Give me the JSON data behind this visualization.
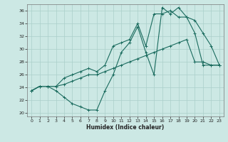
{
  "xlabel": "Humidex (Indice chaleur)",
  "bg_color": "#cce8e4",
  "line_color": "#1a6b5e",
  "grid_color": "#aacfca",
  "xlim": [
    -0.5,
    23.5
  ],
  "ylim": [
    19.5,
    37.0
  ],
  "xticks": [
    0,
    1,
    2,
    3,
    4,
    5,
    6,
    7,
    8,
    9,
    10,
    11,
    12,
    13,
    14,
    15,
    16,
    17,
    18,
    19,
    20,
    21,
    22,
    23
  ],
  "yticks": [
    20,
    22,
    24,
    26,
    28,
    30,
    32,
    34,
    36
  ],
  "line_jagged": {
    "x": [
      0,
      1,
      2,
      3,
      4,
      5,
      6,
      7,
      8,
      9,
      10,
      11,
      12,
      13,
      14,
      15,
      16,
      17,
      18,
      19,
      20,
      21,
      22,
      23
    ],
    "y": [
      23.5,
      24.2,
      24.2,
      23.5,
      22.5,
      21.5,
      21.0,
      20.5,
      20.5,
      23.5,
      26.0,
      29.5,
      31.0,
      33.5,
      29.5,
      26.0,
      36.5,
      35.5,
      36.5,
      35.0,
      32.5,
      27.5,
      27.5,
      27.5
    ]
  },
  "line_linear": {
    "x": [
      0,
      1,
      2,
      3,
      4,
      5,
      6,
      7,
      8,
      9,
      10,
      11,
      12,
      13,
      14,
      15,
      16,
      17,
      18,
      19,
      20,
      21,
      22,
      23
    ],
    "y": [
      23.5,
      24.2,
      24.2,
      24.2,
      24.5,
      25.0,
      25.5,
      26.0,
      26.0,
      26.5,
      27.0,
      27.5,
      28.0,
      28.5,
      29.0,
      29.5,
      30.0,
      30.5,
      31.0,
      31.5,
      28.0,
      28.0,
      27.5,
      27.5
    ]
  },
  "line_smooth": {
    "x": [
      0,
      1,
      2,
      3,
      4,
      5,
      6,
      7,
      8,
      9,
      10,
      11,
      12,
      13,
      14,
      15,
      16,
      17,
      18,
      19,
      20,
      21,
      22,
      23
    ],
    "y": [
      23.5,
      24.2,
      24.2,
      24.2,
      25.5,
      26.0,
      26.5,
      27.0,
      26.5,
      27.5,
      30.5,
      31.0,
      31.5,
      34.0,
      30.5,
      35.5,
      35.5,
      36.0,
      35.0,
      35.0,
      34.5,
      32.5,
      30.5,
      27.5
    ]
  }
}
